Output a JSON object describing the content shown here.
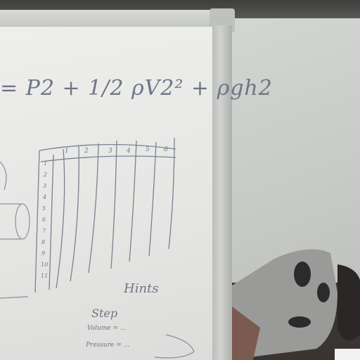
{
  "whiteboard": {
    "formula_text": "= P2 + 1/2 ρV2² + ρgh2",
    "table": {
      "column_headers": [
        "1",
        "2",
        "3",
        "4",
        "5",
        "6"
      ],
      "row_labels": [
        "1",
        "2",
        "3",
        "4",
        "5",
        "6",
        "7",
        "8",
        "9",
        "10",
        "11"
      ]
    },
    "hints_label": "Hints",
    "step_label": "Step",
    "note_line_1": "Volume = ...",
    "note_line_2": "Pressure = ..."
  },
  "colors": {
    "board": "#e9eae7",
    "marker": "#6f7583",
    "wall": "#cdd0cc",
    "frame": "#c4c6c3"
  }
}
